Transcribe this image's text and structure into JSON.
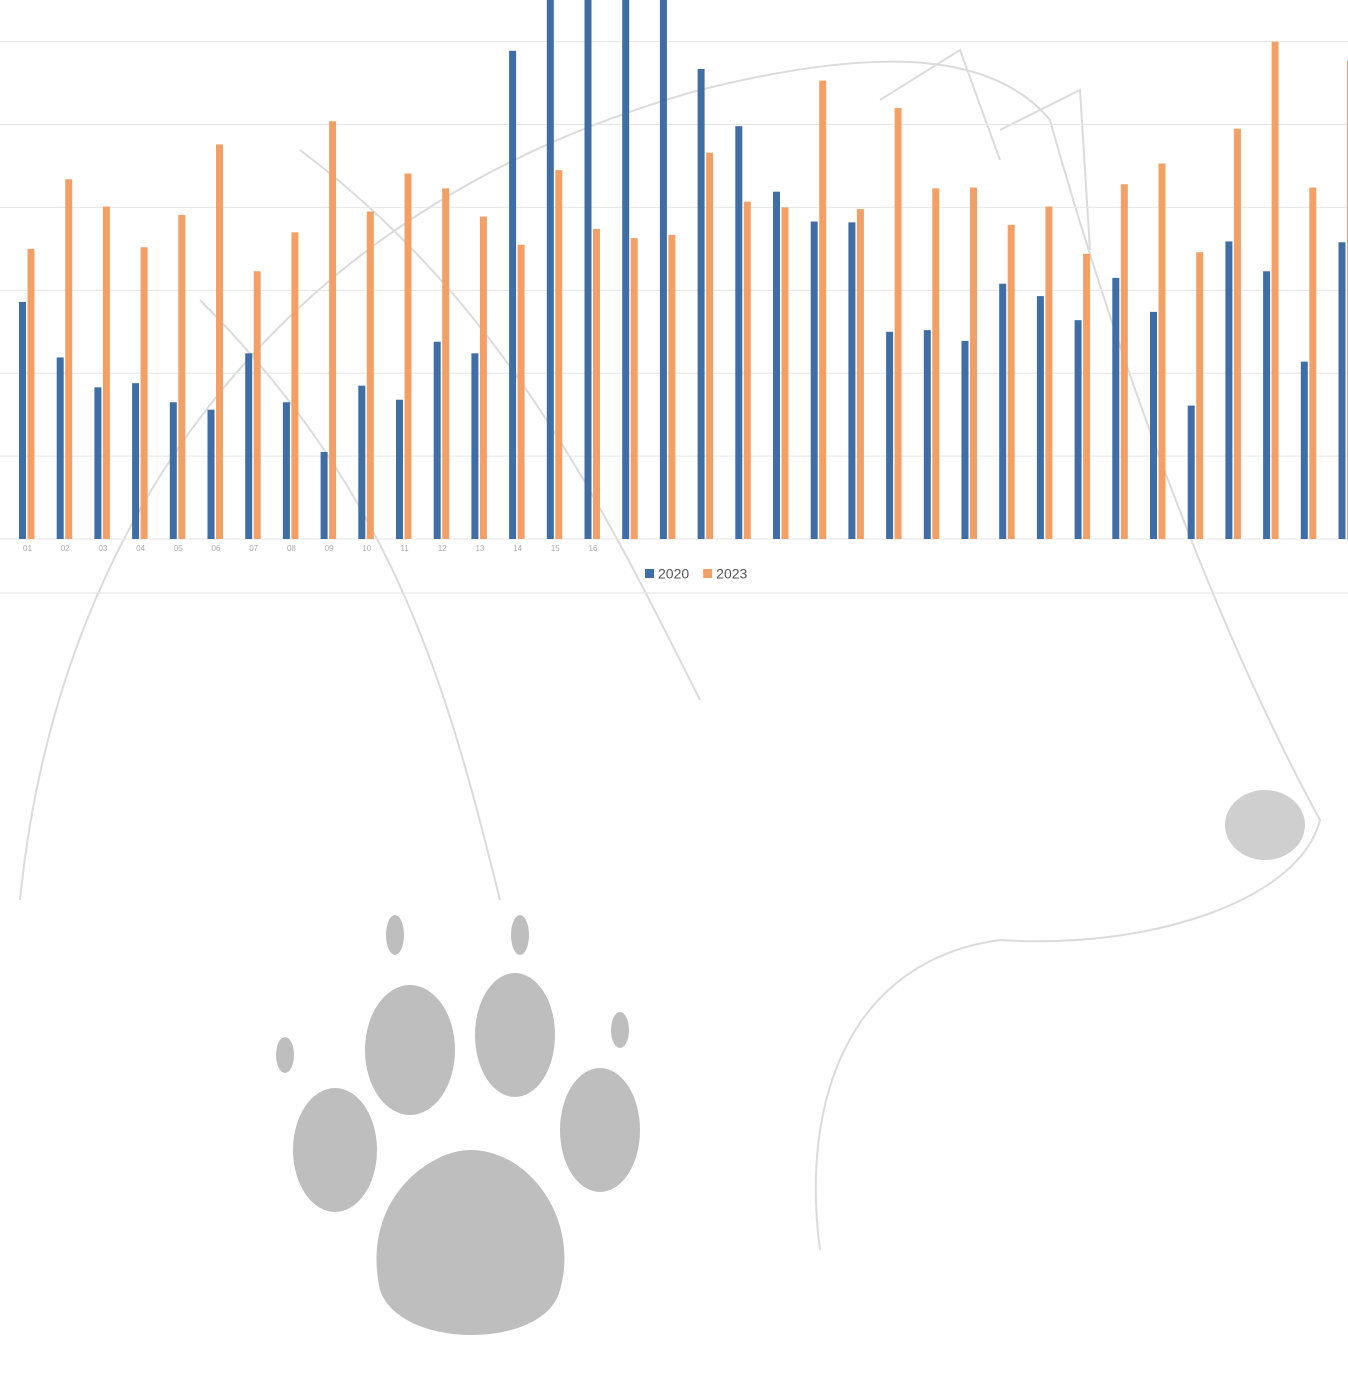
{
  "chart_data": {
    "type": "bar",
    "categories": [
      "01",
      "02",
      "03",
      "04",
      "05",
      "06",
      "07",
      "08",
      "09",
      "10",
      "11",
      "12",
      "13",
      "14",
      "15",
      "16",
      null,
      null,
      null,
      null,
      null,
      null,
      null,
      null,
      null,
      null,
      null,
      null,
      null,
      null,
      null,
      null,
      null,
      null,
      null,
      null
    ],
    "series": [
      {
        "name": "2020",
        "color": "#3f6ea6",
        "values": [
          2.86,
          2.19,
          1.83,
          1.88,
          1.65,
          1.56,
          2.24,
          1.65,
          1.05,
          1.85,
          1.68,
          2.38,
          2.24,
          5.89,
          6.6,
          6.6,
          6.6,
          6.6,
          5.67,
          4.98,
          4.19,
          3.83,
          3.82,
          2.5,
          2.52,
          2.39,
          3.08,
          2.93,
          2.64,
          3.15,
          2.74,
          1.61,
          3.59,
          3.23,
          2.14,
          3.58
        ]
      },
      {
        "name": "2023",
        "color": "#f2a066",
        "values": [
          3.5,
          4.34,
          4.01,
          3.52,
          3.91,
          4.76,
          3.23,
          3.7,
          5.04,
          3.95,
          4.41,
          4.23,
          3.89,
          3.55,
          4.45,
          3.74,
          3.63,
          3.67,
          4.66,
          4.07,
          4.0,
          5.53,
          3.98,
          5.2,
          4.23,
          4.24,
          3.79,
          4.01,
          3.44,
          4.28,
          4.53,
          3.46,
          4.95,
          6.0,
          4.24,
          5.77
        ]
      }
    ],
    "ylim": [
      0,
      6.5
    ],
    "yticks": [
      0,
      1,
      2,
      3,
      4,
      5,
      6
    ],
    "grid": true
  }
}
